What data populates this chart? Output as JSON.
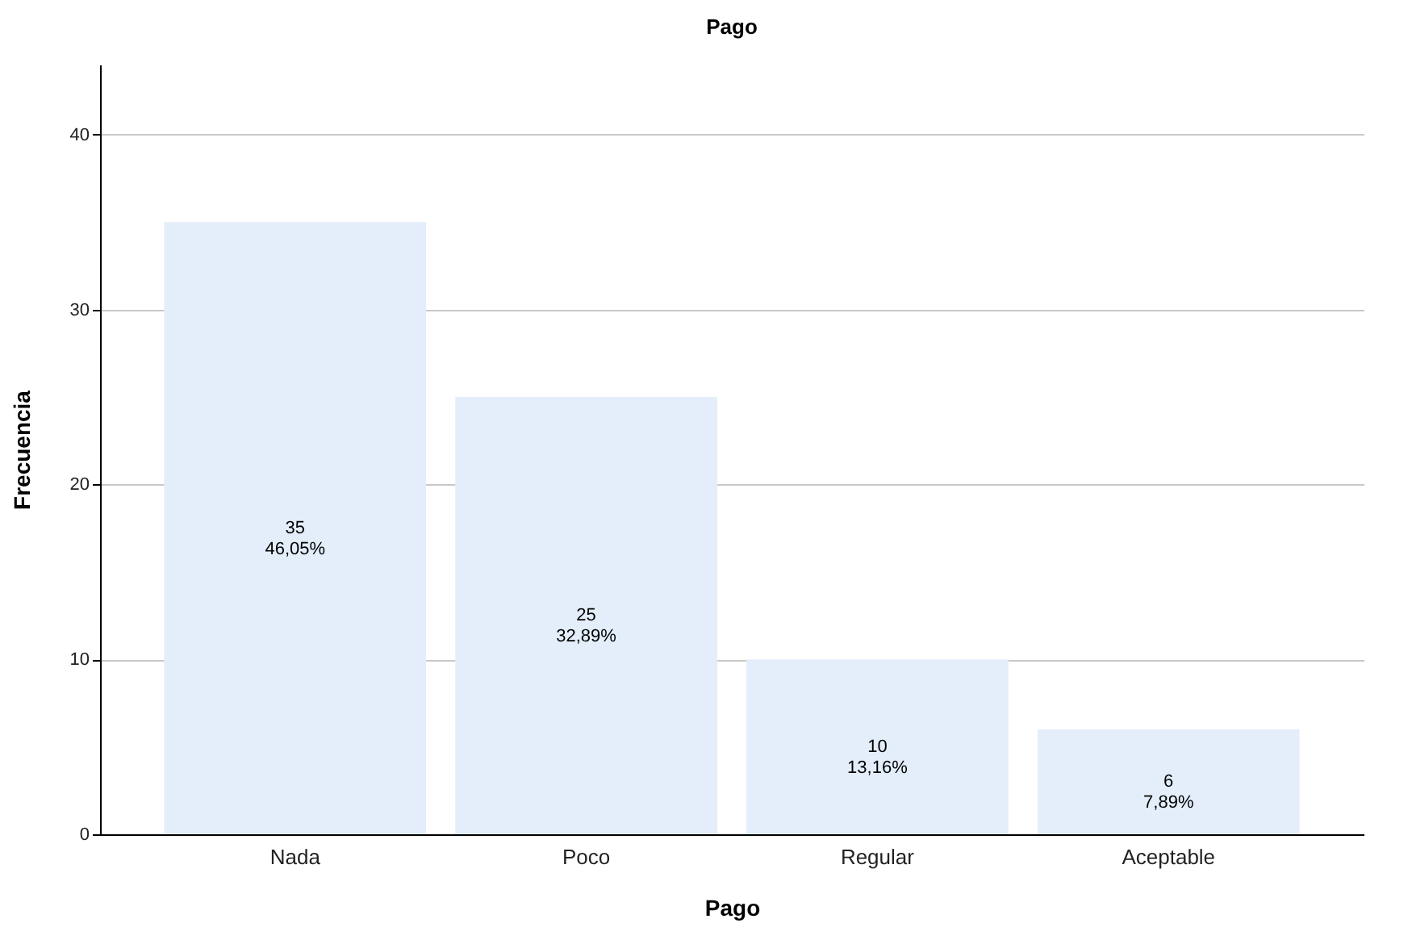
{
  "chart_data": {
    "type": "bar",
    "title": "Pago",
    "xlabel": "Pago",
    "ylabel": "Frecuencia",
    "categories": [
      "Nada",
      "Poco",
      "Regular",
      "Aceptable"
    ],
    "values": [
      35,
      25,
      10,
      6
    ],
    "value_labels": [
      "35\n46,05%",
      "25\n32,89%",
      "10\n13,16%",
      "6\n7,89%"
    ],
    "color": "#e3eefa",
    "ylim": [
      0,
      44
    ],
    "yticks": [
      0,
      10,
      20,
      30,
      40
    ],
    "grid": "y"
  }
}
